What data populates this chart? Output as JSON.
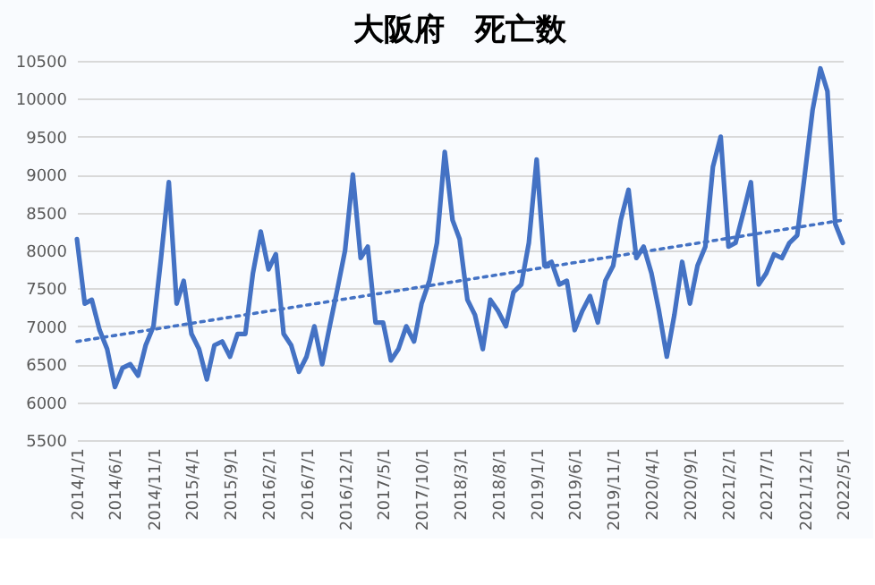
{
  "chart_data": {
    "type": "line",
    "title": "大阪府　死亡数",
    "x": [
      "2014-01",
      "2014-02",
      "2014-03",
      "2014-04",
      "2014-05",
      "2014-06",
      "2014-07",
      "2014-08",
      "2014-09",
      "2014-10",
      "2014-11",
      "2014-12",
      "2015-01",
      "2015-02",
      "2015-03",
      "2015-04",
      "2015-05",
      "2015-06",
      "2015-07",
      "2015-08",
      "2015-09",
      "2015-10",
      "2015-11",
      "2015-12",
      "2016-01",
      "2016-02",
      "2016-03",
      "2016-04",
      "2016-05",
      "2016-06",
      "2016-07",
      "2016-08",
      "2016-09",
      "2016-10",
      "2016-11",
      "2016-12",
      "2017-01",
      "2017-02",
      "2017-03",
      "2017-04",
      "2017-05",
      "2017-06",
      "2017-07",
      "2017-08",
      "2017-09",
      "2017-10",
      "2017-11",
      "2017-12",
      "2018-01",
      "2018-02",
      "2018-03",
      "2018-04",
      "2018-05",
      "2018-06",
      "2018-07",
      "2018-08",
      "2018-09",
      "2018-10",
      "2018-11",
      "2018-12",
      "2019-01",
      "2019-02",
      "2019-03",
      "2019-04",
      "2019-05",
      "2019-06",
      "2019-07",
      "2019-08",
      "2019-09",
      "2019-10",
      "2019-11",
      "2019-12",
      "2020-01",
      "2020-02",
      "2020-03",
      "2020-04",
      "2020-05",
      "2020-06",
      "2020-07",
      "2020-08",
      "2020-09",
      "2020-10",
      "2020-11",
      "2020-12",
      "2021-01",
      "2021-02",
      "2021-03",
      "2021-04",
      "2021-05",
      "2021-06",
      "2021-07",
      "2021-08",
      "2021-09",
      "2021-10",
      "2021-11",
      "2021-12",
      "2022-01",
      "2022-02",
      "2022-03",
      "2022-04",
      "2022-05"
    ],
    "series": [
      {
        "color": "#4472c4",
        "line_style": "solid",
        "values": [
          8150,
          7300,
          7350,
          6950,
          6700,
          6200,
          6450,
          6500,
          6350,
          6750,
          7000,
          7900,
          8900,
          7300,
          7600,
          6900,
          6700,
          6300,
          6750,
          6800,
          6600,
          6900,
          6900,
          7700,
          8250,
          7750,
          7950,
          6900,
          6750,
          6400,
          6600,
          7000,
          6500,
          7000,
          7500,
          8000,
          9000,
          7900,
          8050,
          7050,
          7050,
          6550,
          6700,
          7000,
          6800,
          7300,
          7600,
          8100,
          9300,
          8400,
          8150,
          7350,
          7150,
          6700,
          7350,
          7200,
          7000,
          7450,
          7550,
          8100,
          9200,
          7800,
          7850,
          7550,
          7600,
          6950,
          7200,
          7400,
          7050,
          7600,
          7800,
          8400,
          8800,
          7900,
          8050,
          7700,
          7200,
          6600,
          7150,
          7850,
          7300,
          7800,
          8050,
          9100,
          9500,
          8050,
          8100,
          8500,
          8900,
          7550,
          7700,
          7950,
          7900,
          8100,
          8200,
          9000,
          9850,
          10400,
          10100,
          8350,
          8100
        ]
      },
      {
        "type": "line",
        "color": "#4472c4",
        "line_style": "dotted",
        "x": [
          "2014-01",
          "2022-05"
        ],
        "values": [
          6800,
          8400
        ]
      }
    ],
    "xlim": [
      "2014-01",
      "2022-05"
    ],
    "xticks": [
      {
        "value": "2014-01",
        "label": "2014/1/1"
      },
      {
        "value": "2014-06",
        "label": "2014/6/1"
      },
      {
        "value": "2014-11",
        "label": "2014/11/1"
      },
      {
        "value": "2015-04",
        "label": "2015/4/1"
      },
      {
        "value": "2015-09",
        "label": "2015/9/1"
      },
      {
        "value": "2016-02",
        "label": "2016/2/1"
      },
      {
        "value": "2016-07",
        "label": "2016/7/1"
      },
      {
        "value": "2016-12",
        "label": "2016/12/1"
      },
      {
        "value": "2017-05",
        "label": "2017/5/1"
      },
      {
        "value": "2017-10",
        "label": "2017/10/1"
      },
      {
        "value": "2018-03",
        "label": "2018/3/1"
      },
      {
        "value": "2018-08",
        "label": "2018/8/1"
      },
      {
        "value": "2019-01",
        "label": "2019/1/1"
      },
      {
        "value": "2019-06",
        "label": "2019/6/1"
      },
      {
        "value": "2019-11",
        "label": "2019/11/1"
      },
      {
        "value": "2020-04",
        "label": "2020/4/1"
      },
      {
        "value": "2020-09",
        "label": "2020/9/1"
      },
      {
        "value": "2021-02",
        "label": "2021/2/1"
      },
      {
        "value": "2021-07",
        "label": "2021/7/1"
      },
      {
        "value": "2021-12",
        "label": "2021/12/1"
      },
      {
        "value": "2022-05",
        "label": "2022/5/1"
      }
    ],
    "ylim": [
      5500,
      10500
    ],
    "yticks": [
      5500,
      6000,
      6500,
      7000,
      7500,
      8000,
      8500,
      9000,
      9500,
      10000,
      10500
    ],
    "grid": "y",
    "legend": false,
    "marker": "none"
  }
}
